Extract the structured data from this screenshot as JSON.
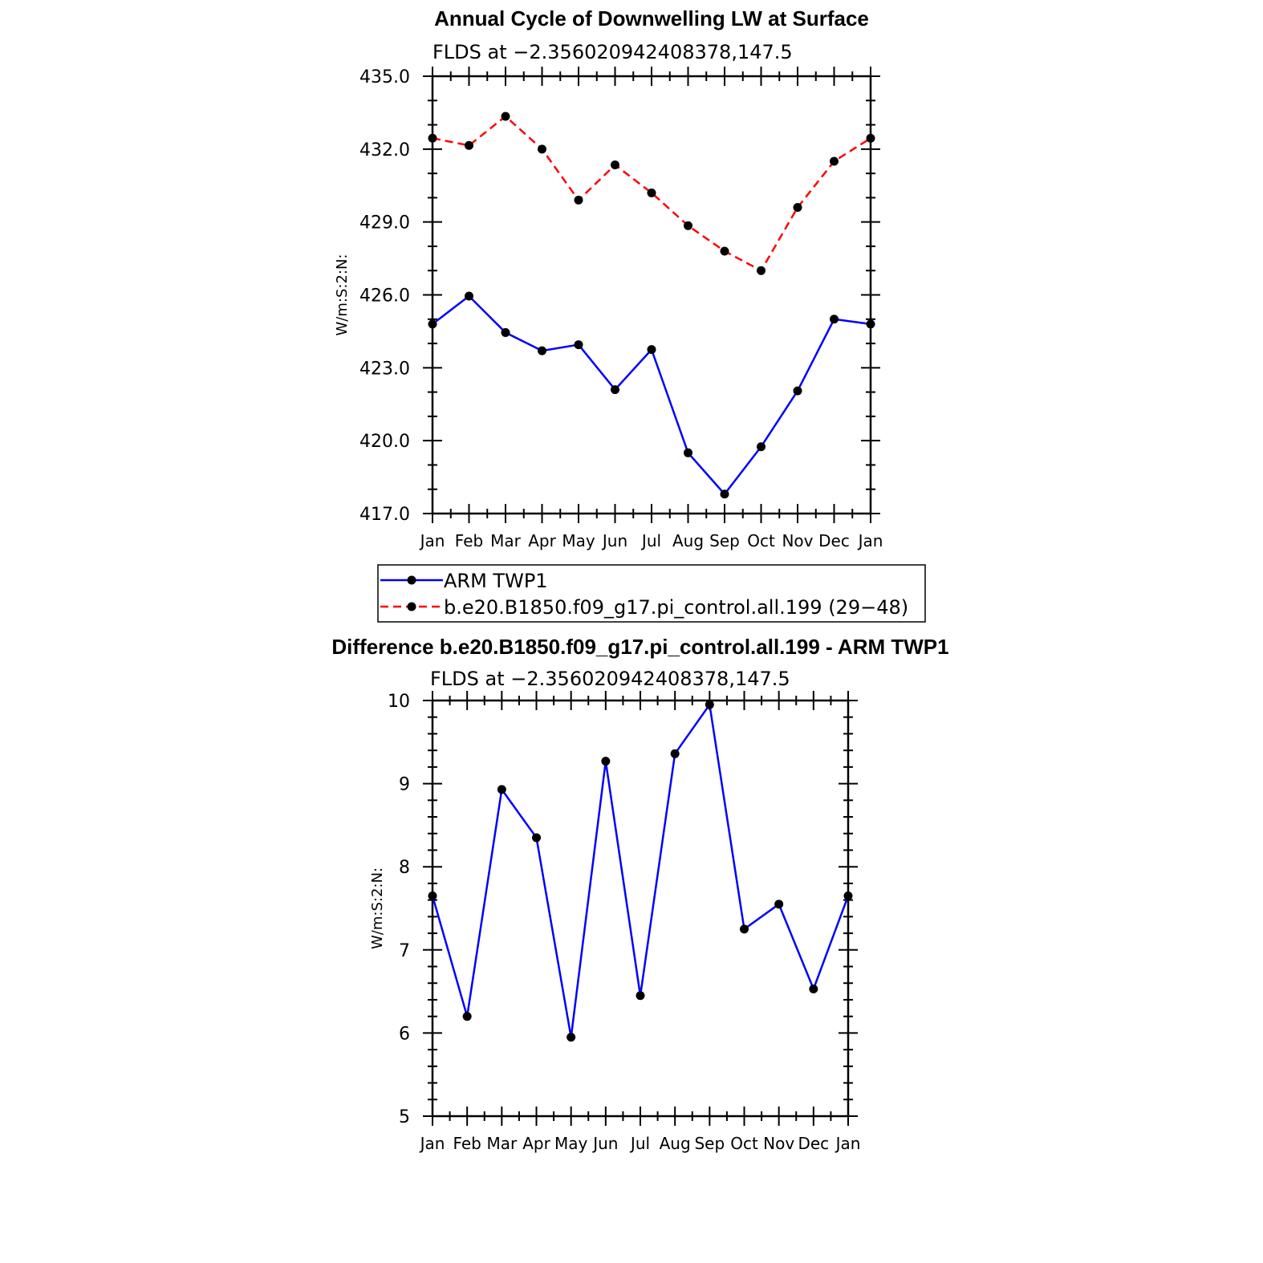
{
  "chart_data": [
    {
      "type": "line",
      "title": "Annual Cycle of Downwelling LW at Surface",
      "subtitle": "FLDS at −2.356020942408378,147.5",
      "ylabel": "W/m:S:2:N:",
      "xlabel": "",
      "categories": [
        "Jan",
        "Feb",
        "Mar",
        "Apr",
        "May",
        "Jun",
        "Jul",
        "Aug",
        "Sep",
        "Oct",
        "Nov",
        "Dec",
        "Jan"
      ],
      "ylim": [
        417.0,
        435.0
      ],
      "yticks": [
        "417.0",
        "420.0",
        "423.0",
        "426.0",
        "429.0",
        "432.0",
        "435.0"
      ],
      "grid": false,
      "series": [
        {
          "name": "ARM  TWP1",
          "color": "#0000ff",
          "dash": "solid",
          "values": [
            424.8,
            425.95,
            424.45,
            423.7,
            423.95,
            422.1,
            423.75,
            419.5,
            417.8,
            419.75,
            422.05,
            425.0,
            424.8
          ]
        },
        {
          "name": "b.e20.B1850.f09_g17.pi_control.all.199 (29−48)",
          "color": "#ff0000",
          "dash": "dashed",
          "values": [
            432.45,
            432.15,
            433.35,
            432.0,
            429.9,
            431.35,
            430.2,
            428.85,
            427.8,
            427.0,
            429.6,
            431.5,
            432.45
          ]
        }
      ],
      "legend": {
        "placement": "below",
        "entries": [
          "ARM  TWP1",
          "b.e20.B1850.f09_g17.pi_control.all.199 (29−48)"
        ]
      }
    },
    {
      "type": "line",
      "title": "Difference b.e20.B1850.f09_g17.pi_control.all.199 - ARM TWP1",
      "subtitle": "FLDS at −2.356020942408378,147.5",
      "ylabel": "W/m:S:2:N:",
      "xlabel": "",
      "categories": [
        "Jan",
        "Feb",
        "Mar",
        "Apr",
        "May",
        "Jun",
        "Jul",
        "Aug",
        "Sep",
        "Oct",
        "Nov",
        "Dec",
        "Jan"
      ],
      "ylim": [
        5,
        10
      ],
      "yticks": [
        "5",
        "6",
        "7",
        "8",
        "9",
        "10"
      ],
      "grid": false,
      "series": [
        {
          "name": "",
          "color": "#0000ff",
          "dash": "solid",
          "values": [
            7.65,
            6.2,
            8.93,
            8.35,
            5.95,
            9.27,
            6.45,
            9.36,
            9.95,
            7.25,
            7.55,
            6.53,
            7.65
          ]
        }
      ]
    }
  ]
}
